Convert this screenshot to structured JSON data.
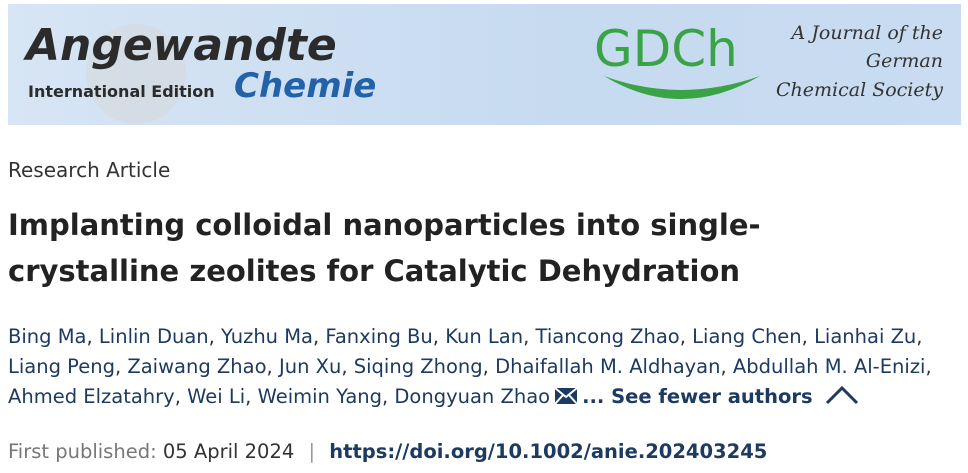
{
  "banner": {
    "brand": "Angewandte",
    "edition": "International Edition",
    "subbrand": "Chemie",
    "society_logo": "GDCh",
    "tagline_lines": [
      "A Journal of the",
      "German",
      "Chemical Society"
    ]
  },
  "article": {
    "type": "Research Article",
    "title_lines": [
      "Implanting colloidal nanoparticles into single-",
      "crystalline zeolites for Catalytic Dehydration"
    ],
    "author_lines": [
      [
        "Bing Ma",
        "Linlin Duan",
        "Yuzhu Ma",
        "Fanxing Bu",
        "Kun Lan",
        "Tiancong Zhao",
        "Liang Chen",
        "Lianhai Zu"
      ],
      [
        "Liang Peng",
        "Zaiwang Zhao",
        "Jun Xu",
        "Siqing Zhong",
        "Dhaifallah M. Aldhayan",
        "Abdullah M. Al-Enizi"
      ],
      [
        "Ahmed Elzatahry",
        "Wei Li",
        "Weimin Yang",
        "Dongyuan Zhao"
      ]
    ],
    "author_separator": ",",
    "toggle": "... See fewer authors",
    "published_label": "First published:",
    "published_date": "05 April 2024",
    "separator": "|",
    "doi": "https://doi.org/10.1002/anie.202403245"
  }
}
